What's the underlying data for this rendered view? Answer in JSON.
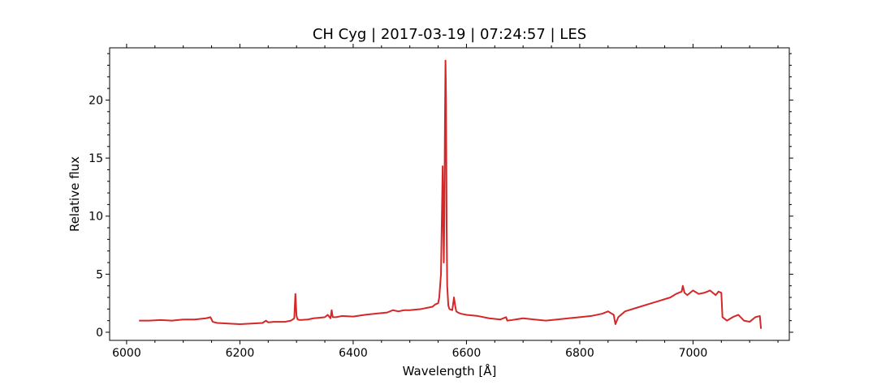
{
  "chart_data": {
    "type": "line",
    "title": "CH Cyg | 2017-03-19 | 07:24:57 | LES",
    "xlabel": "Wavelength [Å]",
    "ylabel": "Relative flux",
    "xlim": [
      5970,
      7170
    ],
    "ylim": [
      -0.7,
      24.5
    ],
    "x_ticks": [
      6000,
      6200,
      6400,
      6600,
      6800,
      7000
    ],
    "y_ticks": [
      0,
      5,
      10,
      15,
      20
    ],
    "grid": false,
    "legend": "none",
    "line_color": "#d62728",
    "series": [
      {
        "x": [
          6022,
          6040,
          6060,
          6080,
          6100,
          6120,
          6140,
          6148,
          6152,
          6160,
          6180,
          6200,
          6220,
          6240,
          6246,
          6250,
          6260,
          6280,
          6290,
          6296,
          6298,
          6300,
          6302,
          6306,
          6320,
          6330,
          6340,
          6350,
          6355,
          6360,
          6362,
          6364,
          6370,
          6380,
          6400,
          6420,
          6440,
          6460,
          6470,
          6480,
          6490,
          6500,
          6520,
          6540,
          6545,
          6550,
          6552,
          6555,
          6558,
          6560,
          6561,
          6562,
          6563,
          6564,
          6565,
          6566,
          6568,
          6570,
          6575,
          6578,
          6580,
          6582,
          6585,
          6590,
          6600,
          6620,
          6640,
          6660,
          6670,
          6672,
          6680,
          6700,
          6720,
          6740,
          6760,
          6780,
          6800,
          6820,
          6840,
          6850,
          6860,
          6863,
          6868,
          6880,
          6900,
          6920,
          6940,
          6960,
          6970,
          6980,
          6982,
          6985,
          6990,
          7000,
          7010,
          7020,
          7030,
          7040,
          7045,
          7050,
          7052,
          7060,
          7070,
          7080,
          7090,
          7100,
          7110,
          7118,
          7120
        ],
        "y": [
          1.0,
          1.0,
          1.05,
          1.0,
          1.1,
          1.1,
          1.2,
          1.3,
          0.9,
          0.8,
          0.75,
          0.7,
          0.75,
          0.8,
          1.0,
          0.85,
          0.9,
          0.9,
          1.0,
          1.2,
          3.3,
          1.4,
          1.1,
          1.05,
          1.1,
          1.2,
          1.25,
          1.3,
          1.5,
          1.2,
          1.9,
          1.3,
          1.3,
          1.4,
          1.35,
          1.5,
          1.6,
          1.7,
          1.9,
          1.8,
          1.9,
          1.9,
          2.0,
          2.2,
          2.4,
          2.5,
          3.0,
          5.0,
          14.3,
          6.0,
          10.0,
          18.0,
          23.4,
          20.0,
          9.0,
          4.0,
          2.3,
          2.0,
          1.9,
          3.0,
          2.3,
          1.8,
          1.7,
          1.6,
          1.5,
          1.4,
          1.2,
          1.1,
          1.3,
          1.0,
          1.05,
          1.2,
          1.1,
          1.0,
          1.1,
          1.2,
          1.3,
          1.4,
          1.6,
          1.8,
          1.5,
          0.7,
          1.3,
          1.8,
          2.1,
          2.4,
          2.7,
          3.0,
          3.3,
          3.5,
          4.0,
          3.4,
          3.2,
          3.6,
          3.3,
          3.4,
          3.6,
          3.2,
          3.5,
          3.4,
          1.3,
          1.0,
          1.3,
          1.5,
          1.0,
          0.9,
          1.3,
          1.4,
          0.3
        ]
      }
    ]
  }
}
